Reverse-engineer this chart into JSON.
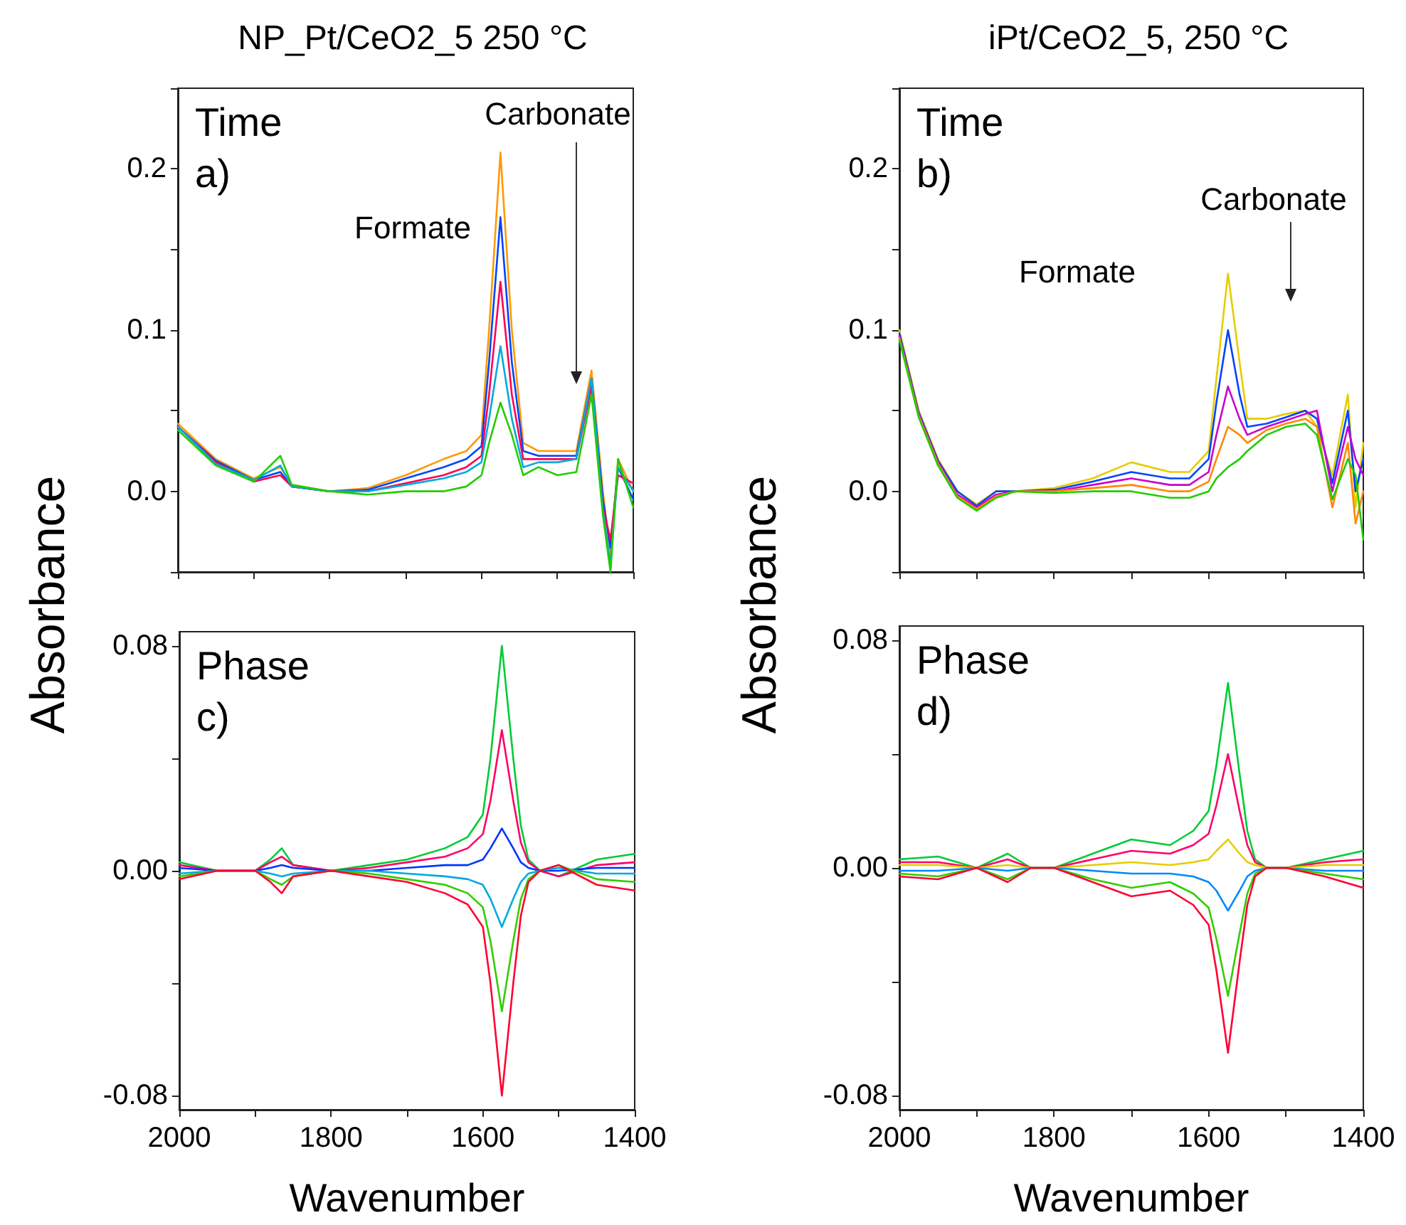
{
  "chart_data": [
    {
      "type": "line",
      "title": "NP_Pt/CeO2_5 250 °C",
      "ylabel": "Absorbance",
      "annotations": [
        "Time",
        "a)",
        "Formate",
        "Carbonate"
      ],
      "xlim": [
        2000,
        1400
      ],
      "xticks": [
        2000,
        {
          "value": 1900,
          "label": null
        },
        1800,
        {
          "value": 1700,
          "label": null
        },
        1600,
        {
          "value": 1500,
          "label": null
        },
        1400
      ],
      "ylim": [
        -0.05,
        0.25
      ],
      "yticks": [
        {
          "value": -0.05,
          "label": null
        },
        {
          "value": 0,
          "label": "0.0"
        },
        {
          "value": 0.05,
          "label": null
        },
        0.1,
        {
          "value": 0.15,
          "label": null
        },
        0.2,
        {
          "value": 0.25,
          "label": null
        }
      ],
      "tick_labels": "y",
      "grid": false,
      "marker": "none",
      "line_style": "solid",
      "x": [
        2000,
        1950,
        1900,
        1865,
        1850,
        1800,
        1750,
        1700,
        1650,
        1620,
        1600,
        1590,
        1575,
        1560,
        1545,
        1525,
        1500,
        1475,
        1455,
        1440,
        1430,
        1420,
        1400
      ],
      "series": [
        {
          "color": "#ff9900",
          "values": [
            0.042,
            0.02,
            0.008,
            0.015,
            0.004,
            0.0,
            0.002,
            0.01,
            0.02,
            0.025,
            0.035,
            0.1,
            0.21,
            0.1,
            0.03,
            0.025,
            0.025,
            0.025,
            0.075,
            0.0,
            -0.04,
            0.02,
            0.0
          ]
        },
        {
          "color": "#0044ff",
          "values": [
            0.04,
            0.019,
            0.007,
            0.012,
            0.003,
            0.0,
            0.001,
            0.008,
            0.015,
            0.02,
            0.028,
            0.08,
            0.17,
            0.08,
            0.025,
            0.022,
            0.022,
            0.022,
            0.07,
            -0.005,
            -0.035,
            0.015,
            -0.005
          ]
        },
        {
          "color": "#ff0055",
          "values": [
            0.04,
            0.018,
            0.006,
            0.01,
            0.003,
            0.0,
            0.0,
            0.005,
            0.01,
            0.015,
            0.022,
            0.06,
            0.13,
            0.06,
            0.02,
            0.02,
            0.02,
            0.02,
            0.065,
            -0.01,
            -0.03,
            0.01,
            0.005
          ]
        },
        {
          "color": "#00aadd",
          "values": [
            0.04,
            0.017,
            0.007,
            0.016,
            0.003,
            0.0,
            0.0,
            0.004,
            0.008,
            0.012,
            0.018,
            0.045,
            0.09,
            0.045,
            0.015,
            0.018,
            0.018,
            0.02,
            0.07,
            -0.012,
            -0.045,
            0.015,
            0.0
          ]
        },
        {
          "color": "#22cc00",
          "values": [
            0.038,
            0.016,
            0.006,
            0.022,
            0.004,
            0.0,
            -0.002,
            0.0,
            0.0,
            0.003,
            0.01,
            0.03,
            0.055,
            0.035,
            0.01,
            0.015,
            0.01,
            0.012,
            0.06,
            -0.015,
            -0.05,
            0.02,
            -0.01
          ]
        }
      ]
    },
    {
      "type": "line",
      "title": "iPt/CeO2_5, 250 °C",
      "ylabel": "Absorbance",
      "annotations": [
        "Time",
        "b)",
        "Formate",
        "Carbonate"
      ],
      "xlim": [
        2000,
        1400
      ],
      "xticks": [
        2000,
        {
          "value": 1900,
          "label": null
        },
        1800,
        {
          "value": 1700,
          "label": null
        },
        1600,
        {
          "value": 1500,
          "label": null
        },
        1400
      ],
      "ylim": [
        -0.05,
        0.25
      ],
      "yticks": [
        {
          "value": -0.05,
          "label": null
        },
        {
          "value": 0,
          "label": "0.0"
        },
        {
          "value": 0.05,
          "label": null
        },
        0.1,
        {
          "value": 0.15,
          "label": null
        },
        0.2,
        {
          "value": 0.25,
          "label": null
        }
      ],
      "tick_labels": "y",
      "grid": false,
      "marker": "none",
      "line_style": "solid",
      "x": [
        2000,
        1975,
        1950,
        1925,
        1900,
        1875,
        1850,
        1800,
        1750,
        1700,
        1650,
        1625,
        1600,
        1590,
        1575,
        1560,
        1550,
        1525,
        1500,
        1475,
        1460,
        1440,
        1420,
        1410,
        1400
      ],
      "series": [
        {
          "color": "#e6cc00",
          "values": [
            0.1,
            0.05,
            0.02,
            0.0,
            -0.008,
            0.0,
            0.0,
            0.002,
            0.008,
            0.018,
            0.012,
            0.012,
            0.025,
            0.07,
            0.135,
            0.08,
            0.045,
            0.045,
            0.048,
            0.05,
            0.04,
            0.01,
            0.06,
            -0.01,
            0.03
          ]
        },
        {
          "color": "#0044ff",
          "values": [
            0.098,
            0.049,
            0.019,
            0.0,
            -0.009,
            0.0,
            0.0,
            0.001,
            0.006,
            0.012,
            0.008,
            0.008,
            0.02,
            0.055,
            0.1,
            0.06,
            0.04,
            0.042,
            0.046,
            0.05,
            0.045,
            0.005,
            0.05,
            0.0,
            0.02
          ]
        },
        {
          "color": "#cc00cc",
          "values": [
            0.096,
            0.048,
            0.018,
            -0.002,
            -0.01,
            -0.002,
            0.0,
            0.0,
            0.004,
            0.008,
            0.004,
            0.004,
            0.012,
            0.035,
            0.065,
            0.045,
            0.035,
            0.04,
            0.044,
            0.048,
            0.05,
            0.0,
            0.04,
            0.02,
            0.01
          ]
        },
        {
          "color": "#ff8800",
          "values": [
            0.095,
            0.047,
            0.017,
            -0.003,
            -0.011,
            -0.003,
            0.0,
            0.0,
            0.002,
            0.004,
            0.0,
            0.0,
            0.006,
            0.02,
            0.04,
            0.035,
            0.03,
            0.038,
            0.042,
            0.045,
            0.04,
            -0.01,
            0.03,
            -0.02,
            0.0
          ]
        },
        {
          "color": "#22cc00",
          "values": [
            0.094,
            0.046,
            0.016,
            -0.004,
            -0.012,
            -0.004,
            0.0,
            -0.001,
            0.0,
            0.0,
            -0.004,
            -0.004,
            0.0,
            0.008,
            0.015,
            0.02,
            0.025,
            0.035,
            0.04,
            0.042,
            0.035,
            -0.005,
            0.02,
            0.01,
            -0.03
          ]
        }
      ]
    },
    {
      "type": "line",
      "xlabel": "Wavenumber",
      "annotations": [
        "Phase",
        "c)"
      ],
      "xlim": [
        2000,
        1400
      ],
      "xticks": [
        2000,
        {
          "value": 1900,
          "label": null
        },
        1800,
        {
          "value": 1700,
          "label": null
        },
        1600,
        {
          "value": 1500,
          "label": null
        },
        1400
      ],
      "ylim": [
        -0.085,
        0.085
      ],
      "yticks": [
        -0.08,
        {
          "value": -0.04,
          "label": null
        },
        {
          "value": 0,
          "label": "0.00"
        },
        {
          "value": 0.04,
          "label": null
        },
        0.08
      ],
      "grid": false,
      "marker": "none",
      "line_style": "solid",
      "x": [
        2000,
        1950,
        1900,
        1880,
        1865,
        1850,
        1800,
        1750,
        1700,
        1650,
        1620,
        1600,
        1590,
        1575,
        1560,
        1550,
        1540,
        1525,
        1500,
        1450,
        1400
      ],
      "series": [
        {
          "color": "#00cc33",
          "values": [
            0.003,
            0,
            0,
            0.004,
            0.008,
            0.002,
            0,
            0.002,
            0.004,
            0.008,
            0.012,
            0.02,
            0.04,
            0.08,
            0.04,
            0.016,
            0.004,
            0,
            -0.002,
            0.004,
            0.006
          ]
        },
        {
          "color": "#ff0066",
          "values": [
            0.002,
            0,
            0,
            0.003,
            0.005,
            0.002,
            0,
            0.001,
            0.003,
            0.005,
            0.008,
            0.013,
            0.025,
            0.05,
            0.025,
            0.01,
            0.003,
            0,
            -0.002,
            0.002,
            0.003
          ]
        },
        {
          "color": "#0033ff",
          "values": [
            0.001,
            0,
            0,
            0.001,
            0.002,
            0.001,
            0,
            0,
            0.001,
            0.002,
            0.002,
            0.004,
            0.008,
            0.015,
            0.008,
            0.003,
            0.001,
            0,
            0,
            0.001,
            0.001
          ]
        },
        {
          "color": "#00aadd",
          "values": [
            -0.001,
            0,
            0,
            -0.001,
            -0.002,
            -0.001,
            0,
            0,
            -0.001,
            -0.002,
            -0.003,
            -0.005,
            -0.01,
            -0.02,
            -0.01,
            -0.004,
            -0.001,
            0,
            0.001,
            -0.001,
            -0.001
          ]
        },
        {
          "color": "#33cc00",
          "values": [
            -0.002,
            0,
            0,
            -0.003,
            -0.005,
            -0.002,
            0,
            -0.001,
            -0.003,
            -0.005,
            -0.008,
            -0.013,
            -0.025,
            -0.05,
            -0.025,
            -0.01,
            -0.003,
            0,
            0.002,
            -0.003,
            -0.004
          ]
        },
        {
          "color": "#ff0033",
          "values": [
            -0.003,
            0,
            0,
            -0.004,
            -0.008,
            -0.002,
            0,
            -0.002,
            -0.004,
            -0.008,
            -0.012,
            -0.02,
            -0.04,
            -0.08,
            -0.04,
            -0.016,
            -0.004,
            0,
            0.002,
            -0.005,
            -0.007
          ]
        }
      ]
    },
    {
      "type": "line",
      "xlabel": "Wavenumber",
      "annotations": [
        "Phase",
        "d)"
      ],
      "xlim": [
        2000,
        1400
      ],
      "xticks": [
        2000,
        {
          "value": 1900,
          "label": null
        },
        1800,
        {
          "value": 1700,
          "label": null
        },
        1600,
        {
          "value": 1500,
          "label": null
        },
        1400
      ],
      "ylim": [
        -0.085,
        0.085
      ],
      "yticks": [
        -0.08,
        {
          "value": -0.04,
          "label": null
        },
        {
          "value": 0,
          "label": "0.00"
        },
        {
          "value": 0.04,
          "label": null
        },
        0.08
      ],
      "grid": false,
      "marker": "none",
      "line_style": "solid",
      "x": [
        2000,
        1950,
        1900,
        1860,
        1830,
        1800,
        1750,
        1700,
        1650,
        1620,
        1600,
        1590,
        1575,
        1560,
        1550,
        1540,
        1525,
        1500,
        1450,
        1400
      ],
      "series": [
        {
          "color": "#00cc33",
          "values": [
            0.003,
            0.004,
            0,
            0.005,
            0,
            0,
            0.005,
            0.01,
            0.008,
            0.013,
            0.02,
            0.036,
            0.065,
            0.033,
            0.013,
            0.003,
            0,
            0,
            0.003,
            0.006
          ]
        },
        {
          "color": "#ff0066",
          "values": [
            0.002,
            0.002,
            0,
            0.003,
            0,
            0,
            0.003,
            0.006,
            0.005,
            0.008,
            0.012,
            0.022,
            0.04,
            0.02,
            0.008,
            0.002,
            0,
            0,
            0.002,
            0.003
          ]
        },
        {
          "color": "#e6cc00",
          "values": [
            0.001,
            0.001,
            0,
            0.001,
            0,
            0,
            0.001,
            0.002,
            0.001,
            0.002,
            0.003,
            0.006,
            0.01,
            0.005,
            0.002,
            0.001,
            0,
            0,
            0.001,
            0.001
          ]
        },
        {
          "color": "#0088ff",
          "values": [
            -0.001,
            -0.001,
            0,
            -0.001,
            0,
            0,
            -0.001,
            -0.002,
            -0.002,
            -0.003,
            -0.005,
            -0.008,
            -0.015,
            -0.008,
            -0.003,
            -0.001,
            0,
            0,
            -0.001,
            -0.001
          ]
        },
        {
          "color": "#33cc00",
          "values": [
            -0.002,
            -0.003,
            0,
            -0.004,
            0,
            0,
            -0.004,
            -0.007,
            -0.005,
            -0.009,
            -0.014,
            -0.025,
            -0.045,
            -0.023,
            -0.009,
            -0.002,
            0,
            0,
            -0.002,
            -0.004
          ]
        },
        {
          "color": "#ff0033",
          "values": [
            -0.003,
            -0.004,
            0,
            -0.005,
            0,
            0,
            -0.005,
            -0.01,
            -0.008,
            -0.013,
            -0.02,
            -0.036,
            -0.065,
            -0.033,
            -0.013,
            -0.003,
            0,
            0,
            -0.003,
            -0.007
          ]
        }
      ]
    }
  ]
}
